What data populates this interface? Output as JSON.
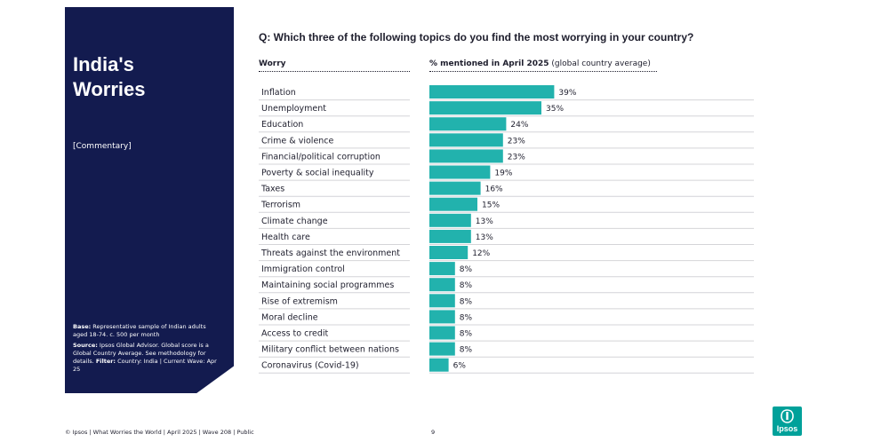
{
  "sidebar": {
    "title": "India's\nWorries",
    "commentary": "[Commentary]",
    "base_label": "Base:",
    "base_text": "Representative sample of Indian adults aged 18-74. c. 500 per month",
    "source_label": "Source:",
    "source_text": "Ipsos Global Advisor. Global score is a Global Country Average. See methodology for details.",
    "filter_label": "Filter:",
    "filter_text": "Country: India | Current Wave: Apr 25",
    "background_color": "#131b4f"
  },
  "question": "Q: Which three of the following topics do you find the most worrying in your country?",
  "headers": {
    "worry": "Worry",
    "pct_bold": "% mentioned in April 2025",
    "pct_rest": "(global country average)"
  },
  "chart_data": {
    "type": "bar",
    "orientation": "horizontal",
    "bar_color": "#22b2ad",
    "categories": [
      "Inflation",
      "Unemployment",
      "Education",
      "Crime & violence",
      "Financial/political corruption",
      "Poverty & social inequality",
      "Taxes",
      "Terrorism",
      "Climate change",
      "Health care",
      "Threats against the environment",
      "Immigration control",
      "Maintaining social programmes",
      "Rise of extremism",
      "Moral decline",
      "Access to credit",
      "Military conflict between nations",
      "Coronavirus (Covid-19)"
    ],
    "values": [
      39,
      35,
      24,
      23,
      23,
      19,
      16,
      15,
      13,
      13,
      12,
      8,
      8,
      8,
      8,
      8,
      8,
      6
    ],
    "value_labels": [
      "39%",
      "35%",
      "24%",
      "23%",
      "23%",
      "19%",
      "16%",
      "15%",
      "13%",
      "13%",
      "12%",
      "8%",
      "8%",
      "8%",
      "8%",
      "8%",
      "8%",
      "6%"
    ],
    "xlim": [
      0,
      100
    ],
    "grid": false
  },
  "footer": {
    "text": "© Ipsos | What Worries the World | April 2025 | Wave 208 | Public",
    "page": "9"
  },
  "logo": {
    "text": "Ipsos",
    "color": "#00a19a"
  }
}
